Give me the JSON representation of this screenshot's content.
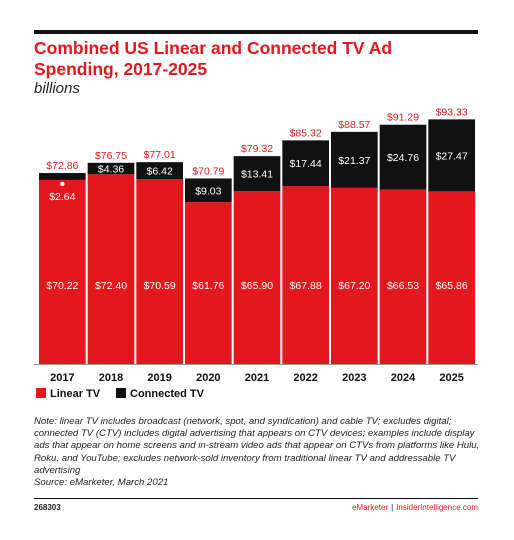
{
  "title": "Combined US Linear and Connected TV Ad Spending, 2017-2025",
  "subtitle": "billions",
  "colors": {
    "linear": "#e3181f",
    "connected": "#111111",
    "accent": "#e3181f"
  },
  "chart_data": {
    "type": "bar",
    "stacked": true,
    "categories": [
      "2017",
      "2018",
      "2019",
      "2020",
      "2021",
      "2022",
      "2023",
      "2024",
      "2025"
    ],
    "series": [
      {
        "name": "Linear TV",
        "values": [
          70.22,
          72.4,
          70.59,
          61.76,
          65.9,
          67.88,
          67.2,
          66.53,
          65.86
        ],
        "labels": [
          "$70.22",
          "$72.40",
          "$70.59",
          "$61.76",
          "$65.90",
          "$67.88",
          "$67.20",
          "$66.53",
          "$65.86"
        ],
        "color": "#e3181f"
      },
      {
        "name": "Connected TV",
        "values": [
          2.64,
          4.36,
          6.42,
          9.03,
          13.41,
          17.44,
          21.37,
          24.76,
          27.47
        ],
        "labels": [
          "$2.64",
          "$4.36",
          "$6.42",
          "$9.03",
          "$13.41",
          "$17.44",
          "$21.37",
          "$24.76",
          "$27.47"
        ],
        "color": "#111111"
      }
    ],
    "totals": [
      72.86,
      76.75,
      77.01,
      70.79,
      79.32,
      85.32,
      88.57,
      91.29,
      93.33
    ],
    "total_labels": [
      "$72.86",
      "$76.75",
      "$77.01",
      "$70.79",
      "$79.32",
      "$85.32",
      "$88.57",
      "$91.29",
      "$93.33"
    ],
    "ylim": [
      0,
      95
    ],
    "legend": "bottom-left"
  },
  "note": "Note: linear TV includes broadcast (network, spot, and syndication) and cable TV; excludes digital; connected TV (CTV) includes digital advertising that appears on CTV devices; examples include display ads that appear on home screens and in-stream video ads that appear on CTVs from platforms like Hulu, Roku, and YouTube; excludes network-sold inventory from traditional linear TV and addressable TV advertising",
  "source": "Source: eMarketer, March 2021",
  "chart_id": "268303",
  "footer": {
    "brand": "eMarketer",
    "separator": "|",
    "site": "InsiderIntelligence.com"
  }
}
